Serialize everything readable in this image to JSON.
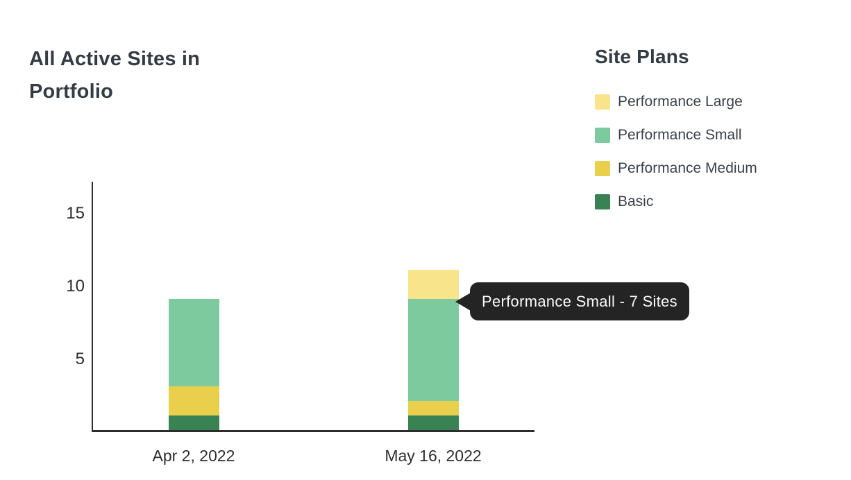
{
  "title": "All Active Sites in Portfolio",
  "legend": {
    "title": "Site Plans",
    "items": [
      {
        "label": "Performance Large",
        "color": "#F7E48B"
      },
      {
        "label": "Performance Small",
        "color": "#7DCA9E"
      },
      {
        "label": "Performance Medium",
        "color": "#E9CF4B"
      },
      {
        "label": "Basic",
        "color": "#388253"
      }
    ]
  },
  "tooltip": {
    "text": "Performance Small - 7 Sites",
    "background": "#242424",
    "text_color": "#FAFAF8"
  },
  "chart_data": {
    "type": "bar",
    "stacked": true,
    "title": "All Active Sites in Portfolio",
    "legend_title": "Site Plans",
    "legend_position": "right",
    "grid": false,
    "categories": [
      "Apr 2, 2022",
      "May 16, 2022"
    ],
    "series": [
      {
        "name": "Basic",
        "color": "#388253",
        "values": [
          1,
          1
        ]
      },
      {
        "name": "Performance Medium",
        "color": "#E9CF4B",
        "values": [
          2,
          1
        ]
      },
      {
        "name": "Performance Small",
        "color": "#7DCA9E",
        "values": [
          6,
          7
        ]
      },
      {
        "name": "Performance Large",
        "color": "#F7E48B",
        "values": [
          0,
          2
        ]
      }
    ],
    "totals": [
      9,
      11
    ],
    "yticks": [
      5,
      10,
      15
    ],
    "ylim": [
      0,
      17
    ],
    "xlabel": "",
    "ylabel": "",
    "annotation": {
      "text": "Performance Small - 7 Sites",
      "category": "May 16, 2022",
      "value": 7
    }
  },
  "colors": {
    "title_text": "#333B44",
    "legend_text": "#3A4149",
    "axis_line": "#2D2D2D",
    "tick_text": "#2B2B2B"
  }
}
